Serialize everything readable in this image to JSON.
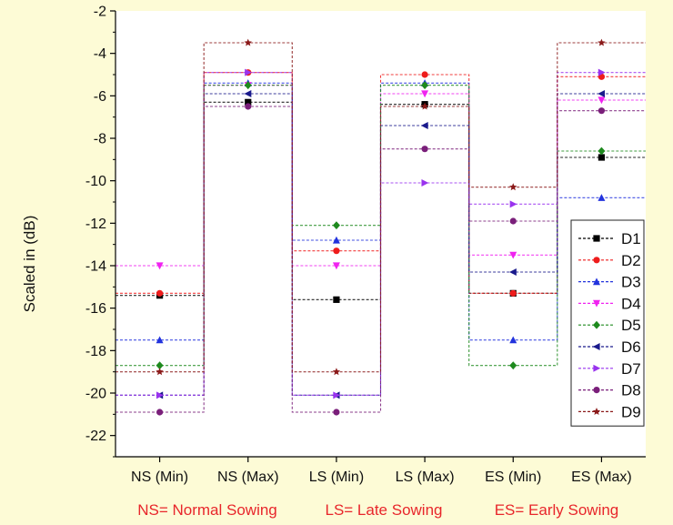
{
  "chart_data": {
    "type": "line",
    "ylabel": "Scaled in (dB)",
    "xlabel": "",
    "ylim": [
      -23,
      -2
    ],
    "yticks": [
      -2,
      -4,
      -6,
      -8,
      -10,
      -12,
      -14,
      -16,
      -18,
      -20,
      -22
    ],
    "categories": [
      "NS (Min)",
      "NS (Max)",
      "LS (Min)",
      "LS (Max)",
      "ES (Min)",
      "ES (Max)"
    ],
    "legend_position": "right",
    "series": [
      {
        "name": "D1",
        "color": "#000000",
        "marker": "square",
        "values": [
          -15.4,
          -6.3,
          -15.6,
          -6.4,
          -15.3,
          -8.9
        ]
      },
      {
        "name": "D2",
        "color": "#ee1c1c",
        "marker": "circle",
        "values": [
          -15.3,
          -4.9,
          -13.3,
          -5.0,
          -15.3,
          -5.1
        ]
      },
      {
        "name": "D3",
        "color": "#2233dd",
        "marker": "triangle-up",
        "values": [
          -17.5,
          -5.4,
          -12.8,
          -5.4,
          -17.5,
          -10.8
        ]
      },
      {
        "name": "D4",
        "color": "#f022f0",
        "marker": "triangle-down",
        "values": [
          -14.0,
          -5.5,
          -14.0,
          -5.9,
          -13.5,
          -6.2
        ]
      },
      {
        "name": "D5",
        "color": "#1e8a1e",
        "marker": "diamond",
        "values": [
          -18.7,
          -5.5,
          -12.1,
          -5.5,
          -18.7,
          -8.6
        ]
      },
      {
        "name": "D6",
        "color": "#1a1a8c",
        "marker": "triangle-left",
        "values": [
          -20.1,
          -5.9,
          -20.1,
          -7.4,
          -14.3,
          -5.9
        ]
      },
      {
        "name": "D7",
        "color": "#9933ee",
        "marker": "triangle-right",
        "values": [
          -20.1,
          -4.9,
          -20.1,
          -10.1,
          -11.1,
          -4.9
        ]
      },
      {
        "name": "D8",
        "color": "#7a1f7a",
        "marker": "circle",
        "values": [
          -20.9,
          -6.5,
          -20.9,
          -8.5,
          -11.9,
          -6.7
        ]
      },
      {
        "name": "D9",
        "color": "#8b1a1a",
        "marker": "star",
        "values": [
          -19.0,
          -3.5,
          -19.0,
          -6.5,
          -10.3,
          -3.5
        ]
      }
    ],
    "footnotes": [
      "NS= Normal Sowing",
      "LS= Late Sowing",
      "ES= Early Sowing"
    ]
  }
}
